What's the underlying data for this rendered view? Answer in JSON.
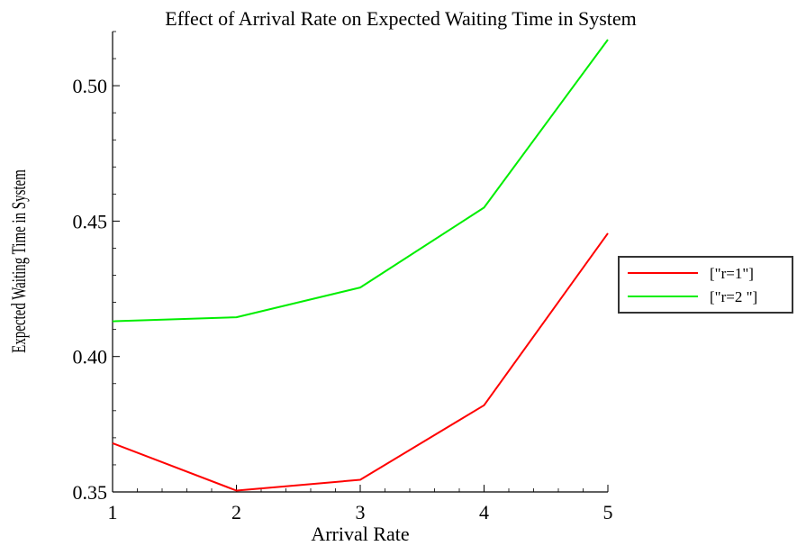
{
  "chart_data": {
    "type": "line",
    "title": "Effect of Arrival Rate on Expected Waiting Time in System",
    "xlabel": "Arrival Rate",
    "ylabel": "Expected Waiting Time in System",
    "x": [
      1,
      2,
      3,
      4,
      5
    ],
    "xlim": [
      1,
      5
    ],
    "ylim": [
      0.35,
      0.52
    ],
    "x_ticks": [
      1,
      2,
      3,
      4,
      5
    ],
    "y_ticks": [
      0.35,
      0.4,
      0.45,
      0.5
    ],
    "y_tick_labels": [
      "0.35",
      "0.40",
      "0.45",
      "0.50"
    ],
    "grid": false,
    "legend_position": "right",
    "series": [
      {
        "name": "[\"r=1\"]",
        "color": "#ff0000",
        "values": [
          0.368,
          0.3505,
          0.3545,
          0.382,
          0.4455
        ]
      },
      {
        "name": "[\"r=2 \"]",
        "color": "#00ee00",
        "values": [
          0.413,
          0.4145,
          0.4255,
          0.455,
          0.517
        ]
      }
    ]
  }
}
